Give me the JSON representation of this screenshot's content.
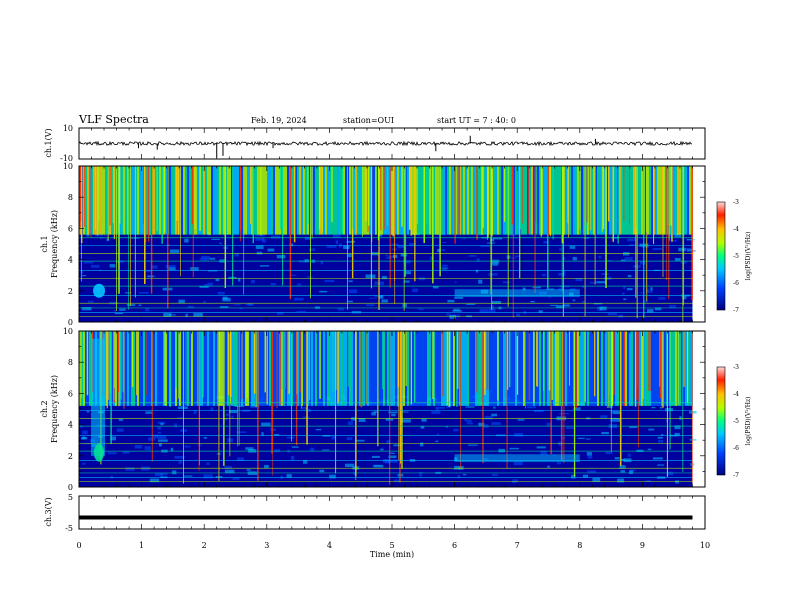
{
  "header": {
    "title": "VLF Spectra",
    "date": "Feb. 19, 2024",
    "station": "station=OUI",
    "start": "start UT =  7 : 40: 0"
  },
  "chart_data": [
    {
      "type": "line",
      "panel": "ch1-waveform",
      "ylabel": "ch.1(V)",
      "ylim": [
        -10,
        10
      ],
      "yticks": [
        "10",
        "-10"
      ],
      "xlim": [
        0,
        10
      ],
      "baseline": 0,
      "spikes": [
        {
          "x": 0.95,
          "y": -3
        },
        {
          "x": 1.25,
          "y": -4
        },
        {
          "x": 2.2,
          "y": -9
        },
        {
          "x": 2.3,
          "y": -8
        },
        {
          "x": 3.1,
          "y": -3
        },
        {
          "x": 5.7,
          "y": -5
        },
        {
          "x": 6.25,
          "y": 5
        },
        {
          "x": 8.25,
          "y": 3
        }
      ]
    },
    {
      "type": "heatmap",
      "panel": "ch1-spectrogram",
      "ylabel_top": "ch.1",
      "ylabel": "Frequency  (kHz)",
      "ylim": [
        0,
        10
      ],
      "yticks": [
        "0",
        "2",
        "4",
        "6",
        "8",
        "10"
      ],
      "xlim": [
        0,
        10
      ],
      "data_end_min": 9.8,
      "colorbar": {
        "label": "log(PSD)(V²/Hz)",
        "range": [
          -7,
          -3
        ],
        "ticks": [
          "-3",
          "-4",
          "-5",
          "-6",
          "-7"
        ]
      }
    },
    {
      "type": "heatmap",
      "panel": "ch2-spectrogram",
      "ylabel_top": "ch.2",
      "ylabel": "Frequency  (kHz)",
      "ylim": [
        0,
        10
      ],
      "yticks": [
        "0",
        "2",
        "4",
        "6",
        "8",
        "10"
      ],
      "xlim": [
        0,
        10
      ],
      "data_end_min": 9.8,
      "colorbar": {
        "label": "log(PSD)(V²/Hz)",
        "range": [
          -7,
          -3
        ],
        "ticks": [
          "-3",
          "-4",
          "-5",
          "-6",
          "-7"
        ]
      }
    },
    {
      "type": "line",
      "panel": "ch3-waveform",
      "ylabel": "ch.3(V)",
      "ylim": [
        -5,
        5
      ],
      "yticks": [
        "5",
        "-5"
      ],
      "xlim": [
        0,
        10
      ],
      "baseline": -1.5
    }
  ],
  "xaxis": {
    "label": "Time  (min)",
    "ticks": [
      "0",
      "1",
      "2",
      "3",
      "4",
      "5",
      "6",
      "7",
      "8",
      "9",
      "10"
    ]
  },
  "colors": {
    "colormap": [
      "#0000a0",
      "#0050ff",
      "#00c8ff",
      "#00e890",
      "#b0ff00",
      "#ffd000",
      "#ff3000",
      "#ffc8c8"
    ]
  }
}
